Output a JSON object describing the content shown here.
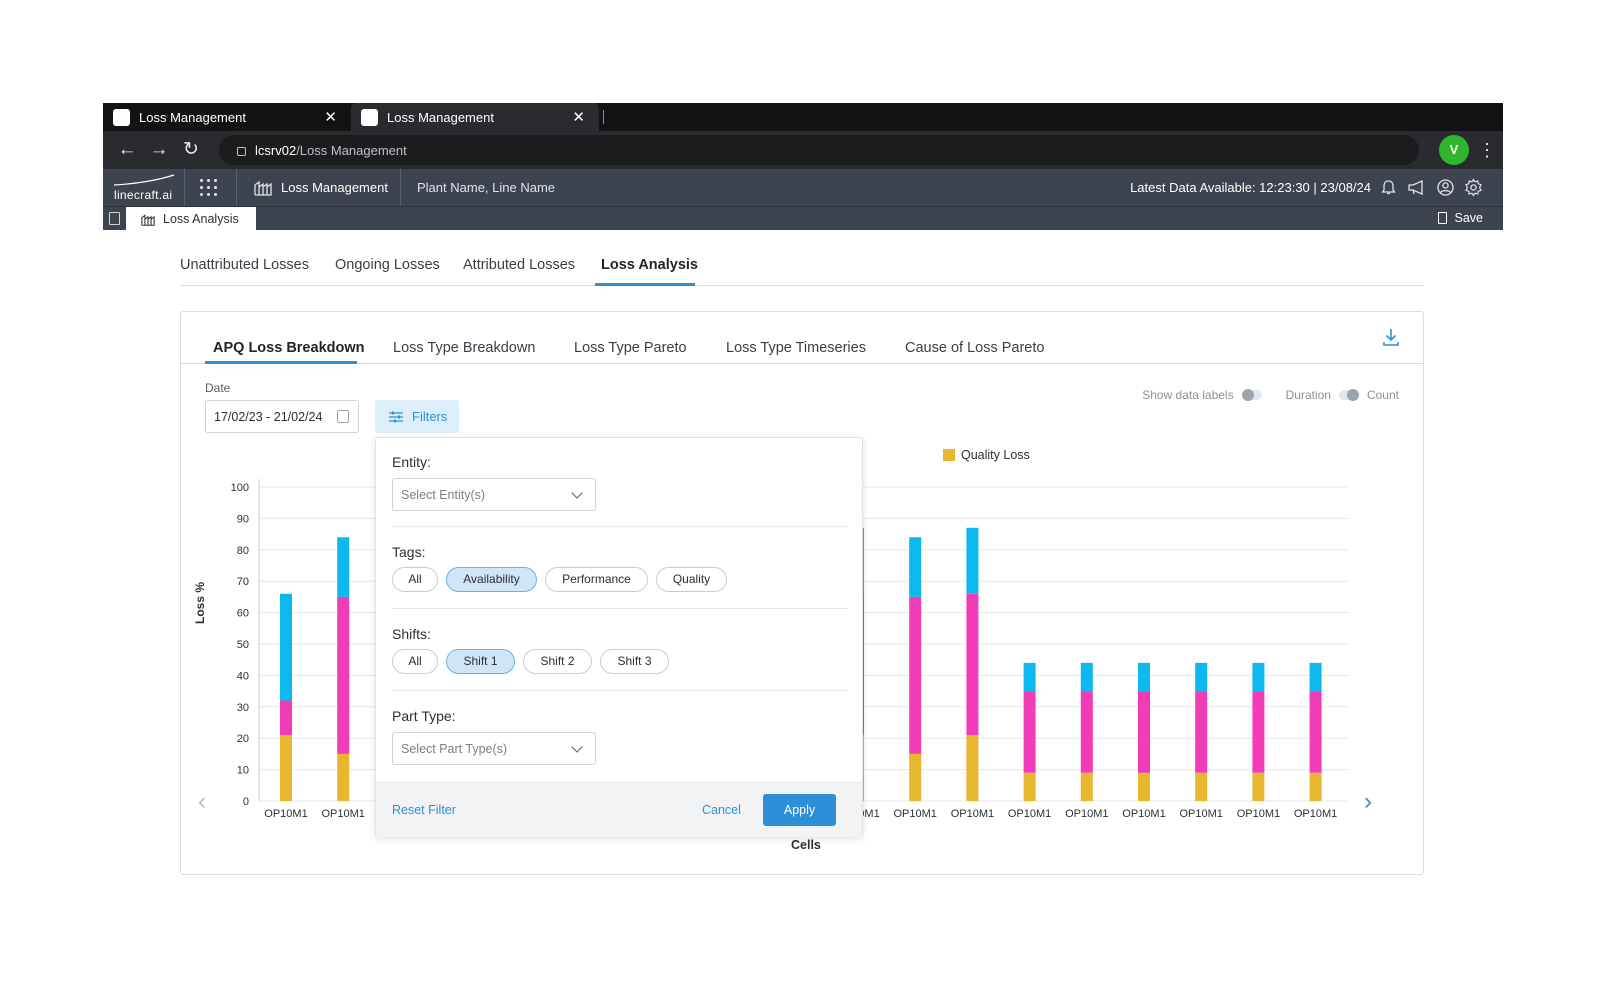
{
  "browser": {
    "tabs": [
      {
        "title": "Loss Management"
      },
      {
        "title": "Loss Management"
      }
    ],
    "address": {
      "host": "lcsrv02",
      "path": "/Loss Management"
    },
    "profile_initial": "V"
  },
  "appbar": {
    "logo_text": "linecraft.ai",
    "module_label": "Loss Management",
    "context_label": "Plant Name, Line Name",
    "latest_data": "Latest Data Available: 12:23:30 | 23/08/24"
  },
  "subbar": {
    "tab_label": "Loss Analysis",
    "save_label": "Save"
  },
  "page_tabs": [
    {
      "label": "Unattributed Losses"
    },
    {
      "label": "Ongoing Losses"
    },
    {
      "label": "Attributed Losses"
    },
    {
      "label": "Loss Analysis",
      "active": true
    }
  ],
  "card_tabs": [
    {
      "label": "APQ Loss Breakdown",
      "active": true
    },
    {
      "label": "Loss Type Breakdown"
    },
    {
      "label": "Loss Type Pareto"
    },
    {
      "label": "Loss Type Timeseries"
    },
    {
      "label": "Cause of Loss Pareto"
    }
  ],
  "controls": {
    "date_label": "Date",
    "date_value": "17/02/23 - 21/02/24",
    "filters_label": "Filters",
    "show_data_labels": "Show data labels",
    "duration": "Duration",
    "count": "Count"
  },
  "filter_panel": {
    "entity_label": "Entity:",
    "entity_placeholder": "Select Entity(s)",
    "tags_label": "Tags:",
    "tags": [
      {
        "label": "All",
        "selected": false
      },
      {
        "label": "Availability",
        "selected": true
      },
      {
        "label": "Performance",
        "selected": false
      },
      {
        "label": "Quality",
        "selected": false
      }
    ],
    "shifts_label": "Shifts:",
    "shifts": [
      {
        "label": "All",
        "selected": false
      },
      {
        "label": "Shift 1",
        "selected": true
      },
      {
        "label": "Shift 2",
        "selected": false
      },
      {
        "label": "Shift 3",
        "selected": false
      }
    ],
    "part_type_label": "Part Type:",
    "part_type_placeholder": "Select Part Type(s)",
    "reset_label": "Reset Filter",
    "cancel_label": "Cancel",
    "apply_label": "Apply"
  },
  "chart_data": {
    "type": "bar",
    "stacked": true,
    "ylabel": "Loss %",
    "xlabel": "Cells",
    "ylim": [
      0,
      100
    ],
    "yticks": [
      0,
      10,
      20,
      30,
      40,
      50,
      60,
      70,
      80,
      90,
      100
    ],
    "grid": true,
    "legend_visible_text": "s",
    "categories": [
      "OP10M1",
      "OP10M1",
      "OP10M1",
      "OP10M1",
      "OP10M1",
      "OP10M1",
      "OP10M1",
      "OP10M1",
      "OP10M1",
      "OP10M1",
      "OP10M1",
      "OP10M1",
      "OP10M1",
      "OP10M1",
      "OP10M1",
      "OP10M1",
      "OP10M1",
      "OP10M1",
      "OP10M1"
    ],
    "visible_indices": [
      0,
      1,
      10,
      11,
      12,
      13,
      14,
      15,
      16,
      17,
      18
    ],
    "series": [
      {
        "name": "Quality Loss",
        "color": "#e8b730",
        "values": [
          21,
          15,
          null,
          null,
          null,
          null,
          null,
          null,
          null,
          null,
          21,
          15,
          21,
          9,
          9,
          9,
          9,
          9,
          9
        ]
      },
      {
        "name": "",
        "color": "#f23cb5",
        "values": [
          11,
          50,
          null,
          null,
          null,
          null,
          null,
          null,
          null,
          null,
          45,
          50,
          45,
          26,
          26,
          26,
          26,
          26,
          26
        ]
      },
      {
        "name": "",
        "color": "#0db8ef",
        "values": [
          34,
          19,
          null,
          null,
          null,
          null,
          null,
          null,
          null,
          null,
          21,
          19,
          21,
          9,
          9,
          9,
          9,
          9,
          9
        ]
      }
    ]
  }
}
